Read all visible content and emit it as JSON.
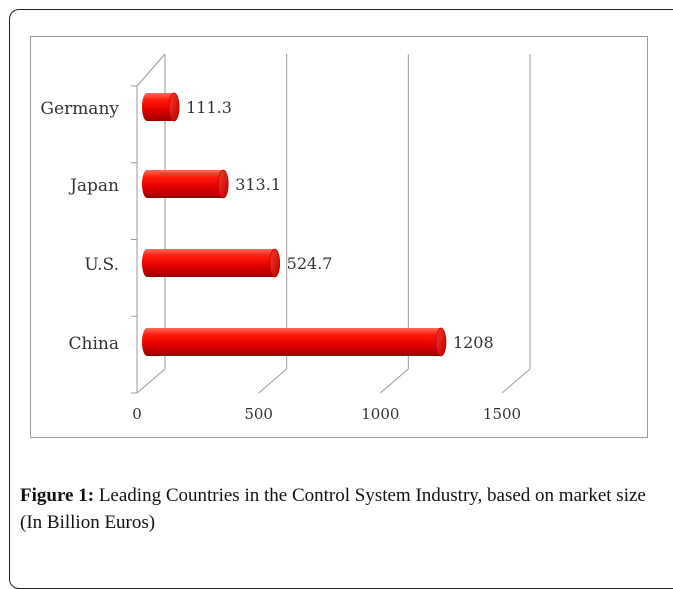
{
  "chart_data": {
    "type": "bar",
    "orientation": "horizontal",
    "style": "3d-cylinder",
    "categories": [
      "Germany",
      "Japan",
      "U.S.",
      "China"
    ],
    "values": [
      111.3,
      313.1,
      524.7,
      1208
    ],
    "value_labels": [
      "111.3",
      "313.1",
      "524.7",
      "1208"
    ],
    "x_ticks": [
      "0",
      "500",
      "1000",
      "1500"
    ],
    "xlim": [
      0,
      1500
    ],
    "grid": true,
    "legend": "none",
    "bar_color": "#e30000"
  },
  "caption": {
    "label": "Figure 1:",
    "text": " Leading Countries in the Control System Industry, based on market size (In Billion Euros)"
  }
}
